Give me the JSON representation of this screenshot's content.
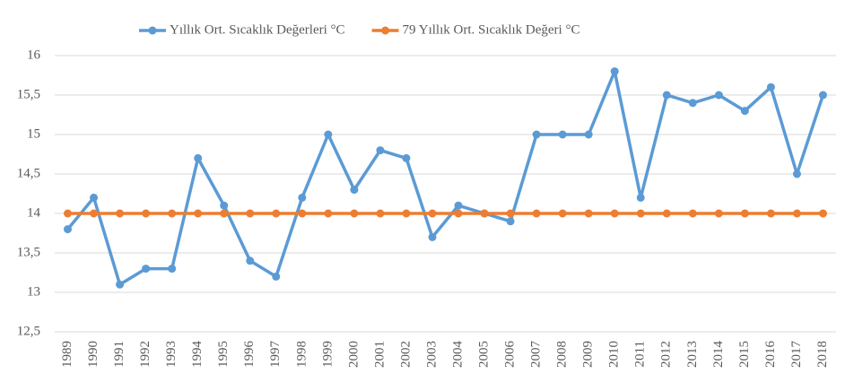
{
  "chart_data": {
    "type": "line",
    "categories": [
      "1989",
      "1990",
      "1991",
      "1992",
      "1993",
      "1994",
      "1995",
      "1996",
      "1997",
      "1998",
      "1999",
      "2000",
      "2001",
      "2002",
      "2003",
      "2004",
      "2005",
      "2006",
      "2007",
      "2008",
      "2009",
      "2010",
      "2011",
      "2012",
      "2013",
      "2014",
      "2015",
      "2016",
      "2017",
      "2018"
    ],
    "series": [
      {
        "name": "Yıllık Ort. Sıcaklık Değerleri °C",
        "color": "#5b9bd5",
        "values": [
          13.8,
          14.2,
          13.1,
          13.3,
          13.3,
          14.7,
          14.1,
          13.4,
          13.2,
          14.2,
          15.0,
          14.3,
          14.8,
          14.7,
          13.7,
          14.1,
          14.0,
          13.9,
          15.0,
          15.0,
          15.0,
          15.8,
          14.2,
          15.5,
          15.4,
          15.5,
          15.3,
          15.6,
          14.5,
          15.5
        ]
      },
      {
        "name": "79 Yıllık Ort. Sıcaklık Değeri °C",
        "color": "#ed7d31",
        "values": [
          14,
          14,
          14,
          14,
          14,
          14,
          14,
          14,
          14,
          14,
          14,
          14,
          14,
          14,
          14,
          14,
          14,
          14,
          14,
          14,
          14,
          14,
          14,
          14,
          14,
          14,
          14,
          14,
          14,
          14
        ]
      }
    ],
    "ylim": [
      12.5,
      16
    ],
    "yticks": [
      {
        "value": 12.5,
        "label": "12,5"
      },
      13,
      {
        "value": 13.5,
        "label": "13,5"
      },
      14,
      {
        "value": 14.5,
        "label": "14,5"
      },
      15,
      {
        "value": 15.5,
        "label": "15,5"
      },
      16
    ],
    "grid": true,
    "legend": "top"
  }
}
